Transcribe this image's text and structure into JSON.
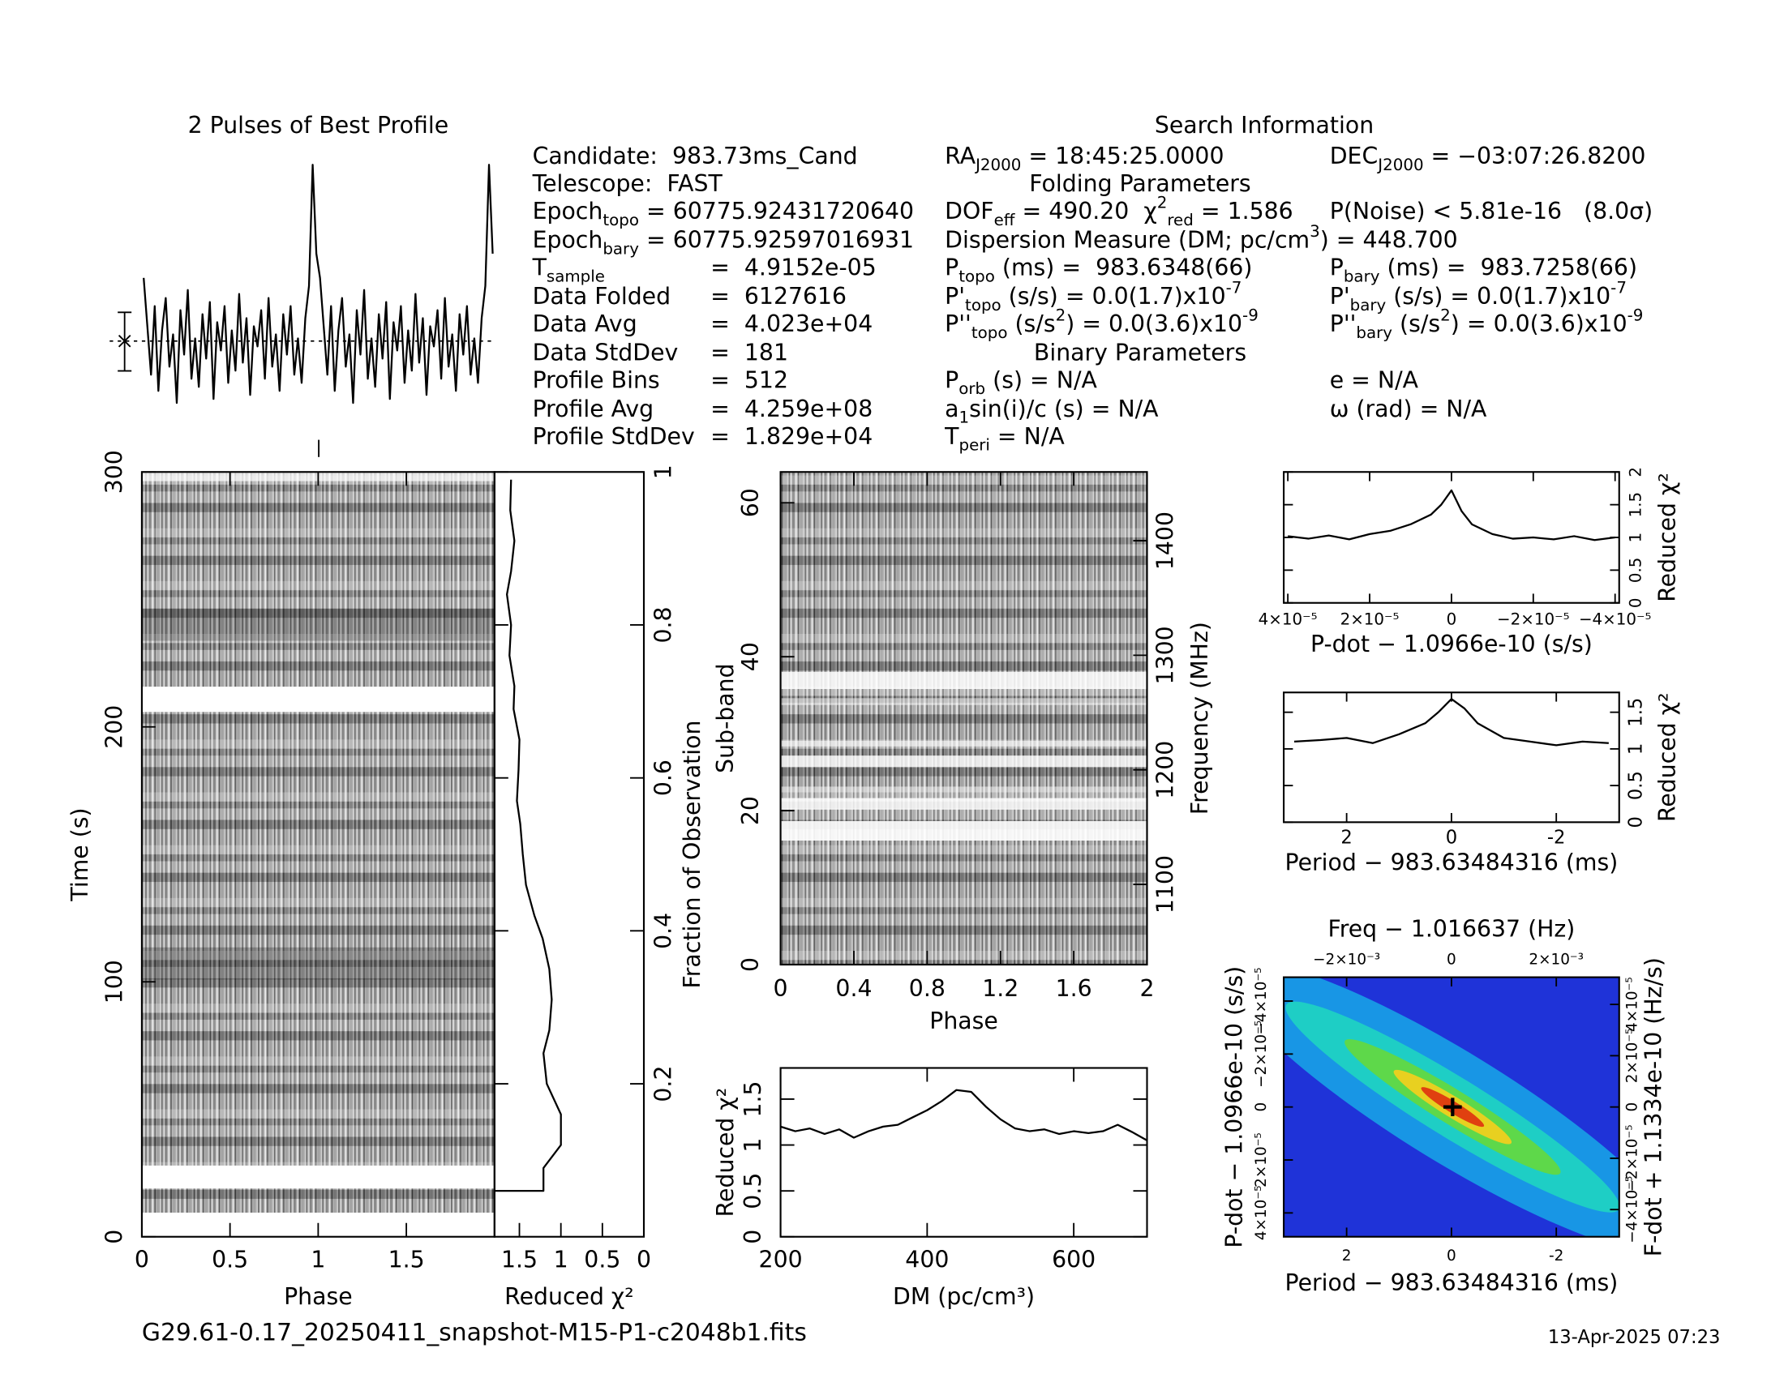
{
  "info": {
    "title": "Search Information",
    "lines": [
      [
        "Candidate:  983.73ms_Cand"
      ],
      [
        "Telescope:  FAST"
      ],
      [
        "Epoch",
        {
          "sub": "topo"
        },
        " = 60775.92431720640"
      ],
      [
        "Epoch",
        {
          "sub": "bary"
        },
        " = 60775.92597016931"
      ],
      [
        "T",
        {
          "sub": "sample"
        }
      ],
      [
        "=  4.9152e-05"
      ],
      [
        "Data Folded"
      ],
      [
        "=  6127616"
      ],
      [
        "Data Avg"
      ],
      [
        "=  4.023e+04"
      ],
      [
        "Data StdDev"
      ],
      [
        "=  181"
      ],
      [
        "Profile Bins"
      ],
      [
        "=  512"
      ],
      [
        "Profile Avg"
      ],
      [
        "=  4.259e+08"
      ],
      [
        "Profile StdDev"
      ],
      [
        "=  1.829e+04"
      ],
      [
        "RA",
        {
          "sub": "J2000"
        },
        " = 18:45:25.0000"
      ],
      [
        "Folding Parameters"
      ],
      [
        "DOF",
        {
          "sub": "eff"
        },
        " = 490.20  χ",
        {
          "sup": "2"
        },
        {
          "sub": "red"
        },
        " = 1.586"
      ],
      [
        "Dispersion Measure (DM; pc/cm",
        {
          "sup": "3"
        },
        ") = 448.700"
      ],
      [
        "P",
        {
          "sub": "topo"
        },
        " (ms) =  983.6348(66)"
      ],
      [
        "P'",
        {
          "sub": "topo"
        },
        " (s/s) = 0.0(1.7)x10",
        {
          "sup": "-7"
        }
      ],
      [
        "P''",
        {
          "sub": "topo"
        },
        " (s/s",
        {
          "sup": "2"
        },
        ") = 0.0(3.6)x10",
        {
          "sup": "-9"
        }
      ],
      [
        "Binary Parameters"
      ],
      [
        "P",
        {
          "sub": "orb"
        },
        " (s) = N/A"
      ],
      [
        "a",
        {
          "sub": "1"
        },
        "sin(i)/c (s) = N/A"
      ],
      [
        "T",
        {
          "sub": "peri"
        },
        " = N/A"
      ],
      [
        "DEC",
        {
          "sub": "J2000"
        },
        " = −03:07:26.8200"
      ],
      [
        "P(Noise) < 5.81e-16   (8.0σ)"
      ],
      [
        "P",
        {
          "sub": "bary"
        },
        " (ms) =  983.7258(66)"
      ],
      [
        "P'",
        {
          "sub": "bary"
        },
        " (s/s) = 0.0(1.7)x10",
        {
          "sup": "-7"
        }
      ],
      [
        "P''",
        {
          "sub": "bary"
        },
        " (s/s",
        {
          "sup": "2"
        },
        ") = 0.0(3.6)x10",
        {
          "sup": "-9"
        }
      ],
      [
        "e = N/A"
      ],
      [
        "ω (rad) = N/A"
      ]
    ]
  },
  "footer": {
    "file": "G29.61-0.17_20250411_snapshot-M15-P1-c2048b1.fits",
    "date": "13-Apr-2025 07:23"
  },
  "chart_data": [
    {
      "type": "line",
      "title": "2 Pulses of Best Profile",
      "ylim": [
        -1.9,
        4.5
      ],
      "values": [
        1.6,
        0.4,
        -0.8,
        0.9,
        -1.2,
        0.3,
        1.1,
        -0.6,
        0.2,
        -1.5,
        0.8,
        -0.3,
        1.3,
        -0.9,
        0.1,
        -1.1,
        0.7,
        -0.4,
        1.0,
        -1.4,
        0.5,
        -0.2,
        0.9,
        -1.0,
        0.3,
        -0.7,
        1.2,
        -0.5,
        0.6,
        -1.3,
        0.4,
        -0.1,
        0.8,
        -0.9,
        1.1,
        -0.6,
        0.2,
        -1.2,
        0.7,
        -0.3,
        0.9,
        -0.8,
        0.1,
        -1.0,
        0.6,
        1.4,
        4.4,
        2.2,
        1.6,
        0.4,
        -0.8,
        0.9,
        -1.2,
        0.3,
        1.1,
        -0.6,
        0.2,
        -1.5,
        0.8,
        -0.3,
        1.3,
        -0.9,
        0.1,
        -1.1,
        0.7,
        -0.4,
        1.0,
        -1.4,
        0.5,
        -0.2,
        0.9,
        -1.0,
        0.3,
        -0.7,
        1.2,
        -0.5,
        0.6,
        -1.3,
        0.4,
        -0.1,
        0.8,
        -0.9,
        1.1,
        -0.6,
        0.2,
        -1.2,
        0.7,
        -0.3,
        0.9,
        -0.8,
        0.1,
        -1.0,
        0.6,
        1.4,
        4.4,
        2.2
      ]
    },
    {
      "type": "image",
      "xlabel": "Phase",
      "ylabel": "Time (s)",
      "xlim": [
        0,
        2
      ],
      "ylim": [
        0,
        300
      ],
      "xticks": [
        0,
        0.5,
        1,
        1.5
      ],
      "yticks": [
        0,
        100,
        200,
        300
      ]
    },
    {
      "type": "line",
      "xlabel": "Reduced χ²",
      "ylabel": "Fraction of Observation",
      "xlim": [
        1.8,
        0
      ],
      "ylim": [
        0,
        1
      ],
      "xticks": [
        1.5,
        1,
        0.5,
        0
      ],
      "yticks": [
        0.2,
        0.4,
        0.6,
        0.8,
        1
      ],
      "y": [
        0.06,
        0.06,
        0.09,
        0.12,
        0.16,
        0.2,
        0.24,
        0.27,
        0.31,
        0.35,
        0.39,
        0.42,
        0.46,
        0.5,
        0.54,
        0.57,
        0.61,
        0.65,
        0.69,
        0.72,
        0.76,
        0.8,
        0.84,
        0.87,
        0.91,
        0.95,
        0.99
      ],
      "values": [
        1.8,
        1.21,
        1.21,
        1.0,
        1.0,
        1.17,
        1.21,
        1.14,
        1.11,
        1.14,
        1.22,
        1.32,
        1.42,
        1.46,
        1.49,
        1.53,
        1.51,
        1.5,
        1.57,
        1.56,
        1.62,
        1.6,
        1.65,
        1.6,
        1.56,
        1.61,
        1.6
      ]
    },
    {
      "type": "image",
      "xlabel": "Phase",
      "ylabel": "Sub-band",
      "y2label": "Frequency (MHz)",
      "xlim": [
        0,
        2
      ],
      "ylim": [
        0,
        64
      ],
      "y2lim": [
        1030,
        1460
      ],
      "xticks": [
        0,
        0.4,
        0.8,
        1.2,
        1.6,
        2
      ],
      "yticks": [
        0,
        20,
        40,
        60
      ],
      "y2ticks": [
        1100,
        1200,
        1300,
        1400
      ]
    },
    {
      "type": "line",
      "xlabel": "DM (pc/cm³)",
      "ylabel": "Reduced χ²",
      "xlim": [
        200,
        700
      ],
      "ylim": [
        0,
        1.84
      ],
      "xticks": [
        200,
        400,
        600
      ],
      "yticks": [
        0,
        0.5,
        1,
        1.5
      ],
      "x": [
        200,
        220,
        240,
        260,
        280,
        300,
        320,
        340,
        360,
        380,
        400,
        420,
        440,
        460,
        480,
        500,
        520,
        540,
        560,
        580,
        600,
        620,
        640,
        660,
        680,
        700
      ],
      "values": [
        1.2,
        1.15,
        1.18,
        1.12,
        1.17,
        1.08,
        1.15,
        1.2,
        1.22,
        1.3,
        1.38,
        1.48,
        1.6,
        1.58,
        1.42,
        1.28,
        1.18,
        1.15,
        1.17,
        1.12,
        1.15,
        1.13,
        1.15,
        1.22,
        1.14,
        1.05
      ]
    },
    {
      "type": "line",
      "xlabel": "P-dot − 1.0966e-10 (s/s)",
      "ylabel": "Reduced χ²",
      "xlim": [
        4.1e-05,
        -4.1e-05
      ],
      "ylim": [
        0,
        2
      ],
      "xticks": [
        {
          "value": 4e-05,
          "label": "4×10⁻⁵"
        },
        {
          "value": 2e-05,
          "label": "2×10⁻⁵"
        },
        0,
        {
          "value": -2e-05,
          "label": "−2×10⁻⁵"
        },
        {
          "value": -4e-05,
          "label": "−4×10⁻⁵"
        }
      ],
      "yticks": [
        0,
        0.5,
        1,
        1.5,
        2
      ],
      "x": [
        4e-05,
        3.5e-05,
        3e-05,
        2.5e-05,
        2e-05,
        1.5e-05,
        1e-05,
        5e-06,
        2.5e-06,
        0,
        -2.5e-06,
        -5e-06,
        -1e-05,
        -1.5e-05,
        -2e-05,
        -2.5e-05,
        -3e-05,
        -3.5e-05,
        -4e-05
      ],
      "values": [
        1.02,
        0.98,
        1.03,
        0.97,
        1.05,
        1.1,
        1.2,
        1.35,
        1.5,
        1.72,
        1.4,
        1.2,
        1.05,
        0.98,
        1.0,
        0.97,
        1.02,
        0.96,
        1.0
      ]
    },
    {
      "type": "line",
      "xlabel": "Period − 983.63484316 (ms)",
      "ylabel": "Reduced χ²",
      "xlim": [
        3.2,
        -3.2
      ],
      "ylim": [
        0,
        1.77
      ],
      "xticks": [
        2,
        0,
        -2
      ],
      "yticks": [
        0,
        0.5,
        1,
        1.5
      ],
      "x": [
        3,
        2.5,
        2,
        1.5,
        1,
        0.5,
        0.25,
        0,
        -0.25,
        -0.5,
        -1,
        -1.5,
        -2,
        -2.5,
        -3
      ],
      "values": [
        1.1,
        1.12,
        1.15,
        1.08,
        1.2,
        1.35,
        1.5,
        1.68,
        1.55,
        1.35,
        1.15,
        1.1,
        1.05,
        1.1,
        1.08
      ]
    },
    {
      "type": "heatmap",
      "xlabel": "Period − 983.63484316 (ms)",
      "x2label": "Freq − 1.016637 (Hz)",
      "ylabel": "P-dot − 1.0966e-10 (s/s)",
      "y2label": "F-dot + 1.1334e-10 (Hz/s)",
      "xlim": [
        3.2,
        -3.2
      ],
      "x2lim": [
        -0.0032,
        0.0032
      ],
      "ylim": [
        4.9e-05,
        -4.9e-05
      ],
      "y2lim": [
        -5.06e-05,
        5.06e-05
      ],
      "xticks": [
        2,
        0,
        -2
      ],
      "x2ticks": [
        {
          "value": -0.002,
          "label": "−2×10⁻³"
        },
        0,
        {
          "value": 0.002,
          "label": "2×10⁻³"
        }
      ],
      "yticks": [
        {
          "value": 4e-05,
          "label": "4×10⁻⁵"
        },
        {
          "value": 2e-05,
          "label": "2×10⁻⁵"
        },
        0,
        {
          "value": -2e-05,
          "label": "−2×10⁻⁵"
        },
        {
          "value": -4e-05,
          "label": "−4×10⁻⁵"
        }
      ],
      "y2ticks": [
        {
          "value": 4e-05,
          "label": "4×10⁻⁵"
        },
        {
          "value": 2e-05,
          "label": "2×10⁻⁵"
        },
        0,
        {
          "value": -2e-05,
          "label": "−2×10⁻⁵"
        },
        {
          "value": -4e-05,
          "label": "−4×10⁻⁵"
        }
      ]
    }
  ]
}
